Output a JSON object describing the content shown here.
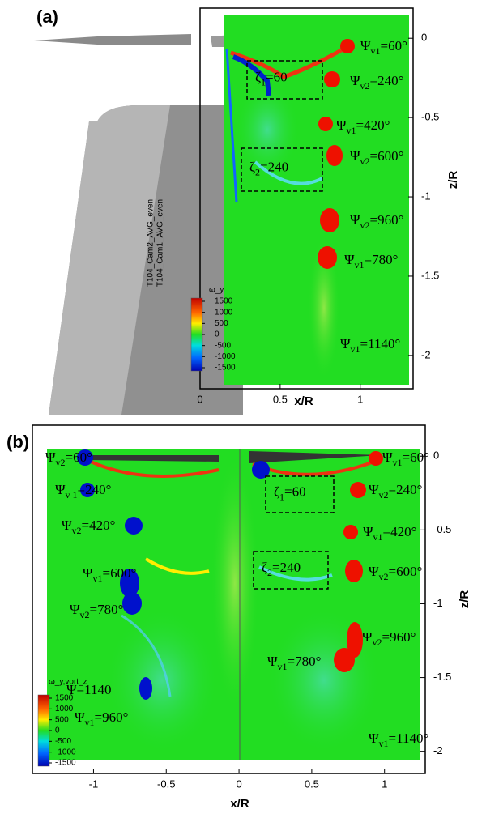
{
  "panels": [
    {
      "label": "(a)",
      "xlabel": "x/R",
      "ylabel": "z/R",
      "xlim": [
        0,
        1.33
      ],
      "ylim": [
        -2.21,
        0.19
      ],
      "xticks": [
        0,
        0.5,
        1
      ],
      "yticks": [
        0,
        -0.5,
        -1,
        -1.5,
        -2
      ],
      "legend_title": "ω_y",
      "legend_ticks": [
        1500,
        1000,
        500,
        0,
        -500,
        -1000,
        -1500
      ],
      "dataset_labels": [
        "T104_Cam2_AVG_even",
        "T104_Cam1_AVG_even"
      ],
      "annotations": [
        {
          "symbol": "Ψ",
          "subscript": "v1",
          "text": "=60°"
        },
        {
          "symbol": "Ψ",
          "subscript": "v2",
          "text": "=240°"
        },
        {
          "symbol": "Ψ",
          "subscript": "v1",
          "text": "=420°"
        },
        {
          "symbol": "Ψ",
          "subscript": "v2",
          "text": "=600°"
        },
        {
          "symbol": "Ψ",
          "subscript": "v2",
          "text": "=960°"
        },
        {
          "symbol": "Ψ",
          "subscript": "v1",
          "text": "=780°"
        },
        {
          "symbol": "Ψ",
          "subscript": "v1",
          "text": "=1140°"
        }
      ],
      "boxes": [
        {
          "symbol": "ζ",
          "subscript": "1",
          "text": "=60"
        },
        {
          "symbol": "ζ",
          "subscript": "2",
          "text": "=240"
        }
      ]
    },
    {
      "label": "(b)",
      "xlabel": "x/R",
      "ylabel": "z/R",
      "xlim": [
        -1.42,
        1.28
      ],
      "ylim": [
        -2.15,
        0.21
      ],
      "xticks": [
        -1,
        -0.5,
        0,
        0.5,
        1
      ],
      "yticks": [
        0,
        -0.5,
        -1,
        -1.5,
        -2
      ],
      "legend_title": "ω_y,vort_z",
      "legend_ticks": [
        1500,
        1000,
        500,
        0,
        -500,
        -1000,
        -1500
      ],
      "annotations": [
        {
          "symbol": "Ψ",
          "subscript": "v2",
          "text": "=60°"
        },
        {
          "symbol": "Ψ",
          "subscript": "v 1",
          "text": "=240°"
        },
        {
          "symbol": "Ψ",
          "subscript": "v2",
          "text": "=420°"
        },
        {
          "symbol": "Ψ",
          "subscript": "v1",
          "text": "=600°"
        },
        {
          "symbol": "Ψ",
          "subscript": "v2",
          "text": "=780°"
        },
        {
          "symbol": "Ψ",
          "subscript": "",
          "text": "=1140"
        },
        {
          "symbol": "Ψ",
          "subscript": "v1",
          "text": "=960°"
        },
        {
          "symbol": "Ψ",
          "subscript": "v1",
          "text": "=60°"
        },
        {
          "symbol": "Ψ",
          "subscript": "v2",
          "text": "=240°"
        },
        {
          "symbol": "Ψ",
          "subscript": "v1",
          "text": "=420°"
        },
        {
          "symbol": "Ψ",
          "subscript": "v2",
          "text": "=600°"
        },
        {
          "symbol": "Ψ",
          "subscript": "v2",
          "text": "=960°"
        },
        {
          "symbol": "Ψ",
          "subscript": "v1",
          "text": "=780°"
        },
        {
          "symbol": "Ψ",
          "subscript": "v1",
          "text": "=1140°"
        }
      ],
      "boxes": [
        {
          "symbol": "ζ",
          "subscript": "1",
          "text": "=60"
        },
        {
          "symbol": "ζ",
          "subscript": "2",
          "text": "=240"
        }
      ]
    }
  ]
}
